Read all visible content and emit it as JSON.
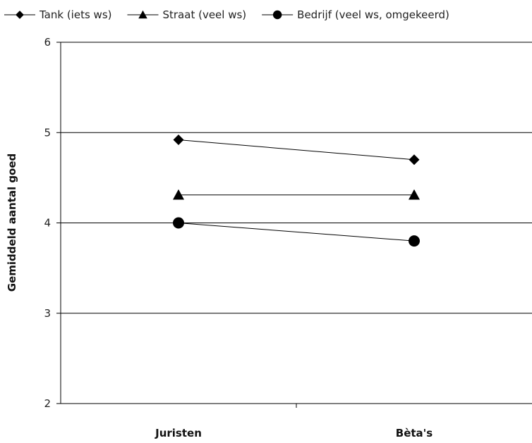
{
  "chart_data": {
    "type": "line",
    "title": "",
    "xlabel": "",
    "ylabel": "Gemiddeld aantal goed",
    "categories": [
      "Juristen",
      "Bèta's"
    ],
    "ylim": [
      2,
      6
    ],
    "yticks": [
      2,
      3,
      4,
      5,
      6
    ],
    "ytick_labels": [
      "2",
      "3",
      "4",
      "5",
      "6"
    ],
    "grid": true,
    "legend": "top",
    "series": [
      {
        "name": "Tank (iets ws)",
        "marker": "diamond",
        "color": "#000000",
        "values": [
          4.92,
          4.7
        ]
      },
      {
        "name": "Straat (veel ws)",
        "marker": "triangle",
        "color": "#000000",
        "values": [
          4.31,
          4.31
        ]
      },
      {
        "name": "Bedrijf (veel ws, omgekeerd)",
        "marker": "circle",
        "color": "#000000",
        "values": [
          4.0,
          3.8
        ]
      }
    ]
  }
}
